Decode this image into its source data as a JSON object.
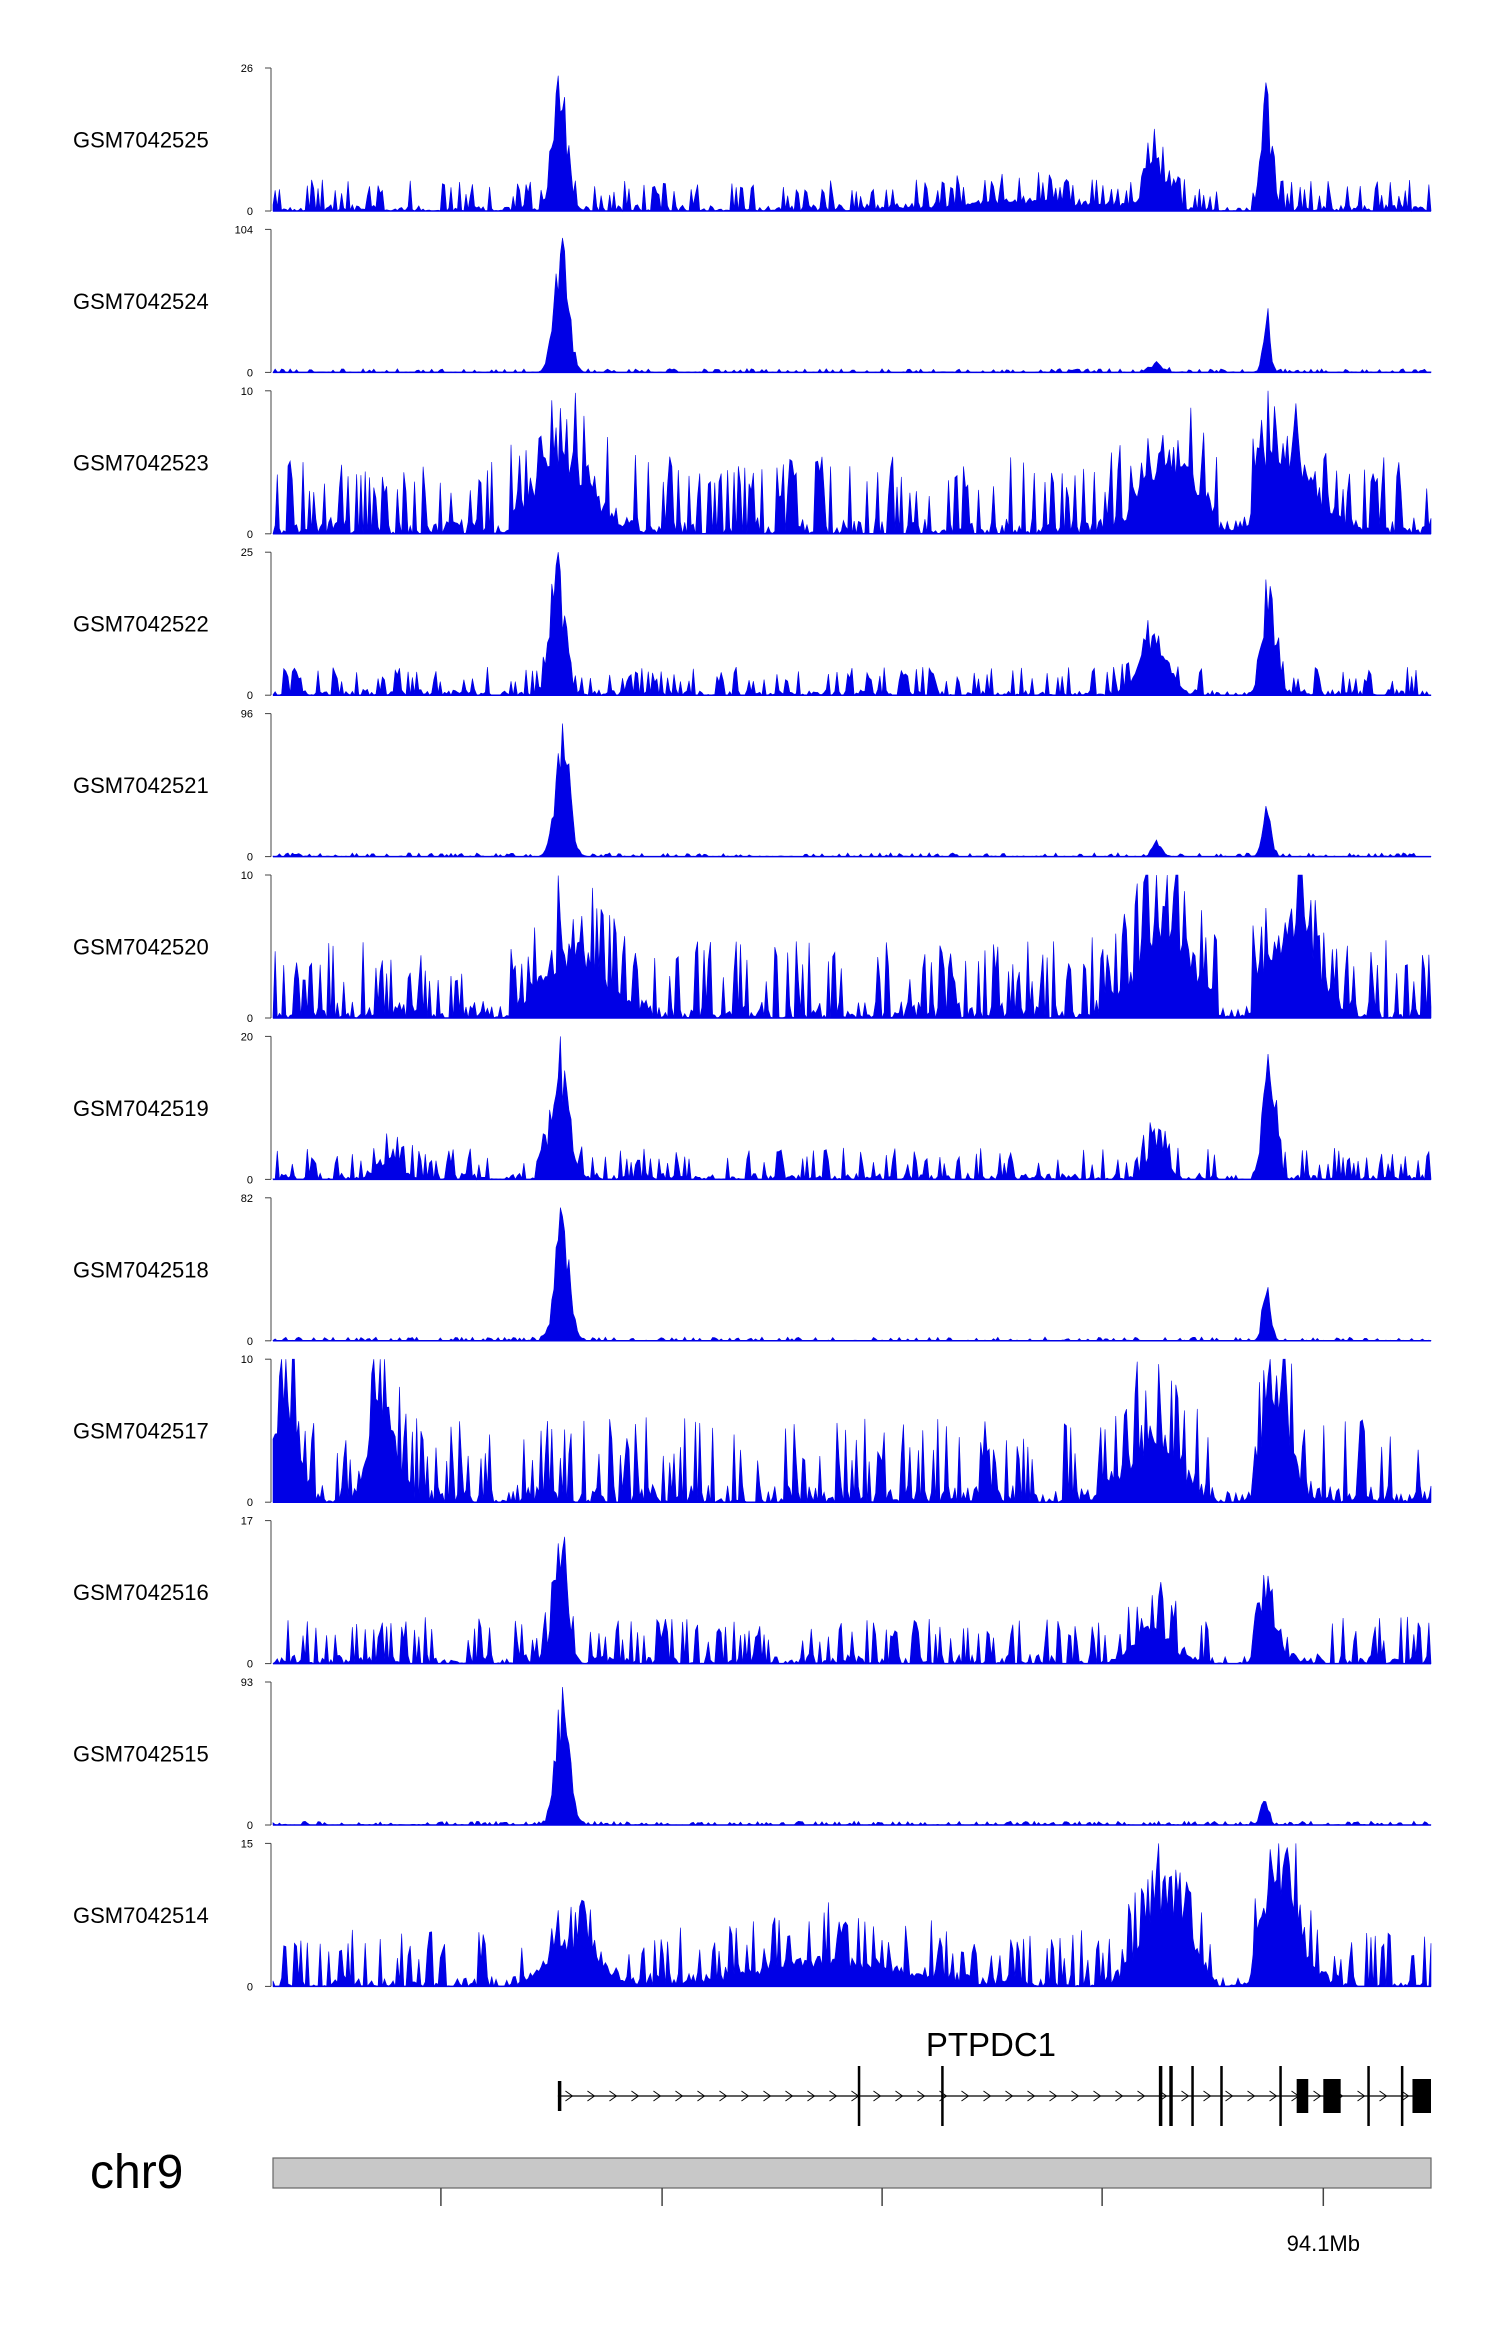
{
  "chart_data": {
    "type": "area",
    "track_color": "#0000e6",
    "x_range": [
      0,
      100
    ],
    "series": [
      {
        "name": "GSM7042525",
        "ymax": "26",
        "ymin": "0",
        "peak_max": 26,
        "noise": 0.1,
        "peaks": [
          [
            24.8,
            0.6,
            1.0
          ],
          [
            76.3,
            0.9,
            0.4
          ],
          [
            85.8,
            0.45,
            0.85
          ],
          [
            65.0,
            6.0,
            0.08
          ]
        ]
      },
      {
        "name": "GSM7042524",
        "ymax": "104",
        "ymin": "0",
        "peak_max": 104,
        "noise": 0.012,
        "peaks": [
          [
            24.9,
            0.6,
            1.0
          ],
          [
            76.3,
            0.6,
            0.06
          ],
          [
            85.8,
            0.3,
            0.5
          ]
        ]
      },
      {
        "name": "GSM7042523",
        "ymax": "10",
        "ymin": "0",
        "peak_max": 10,
        "noise": 0.25,
        "peaks": [
          [
            25.0,
            2.5,
            0.65
          ],
          [
            77.5,
            2.2,
            0.7
          ],
          [
            87.0,
            2.5,
            0.8
          ]
        ]
      },
      {
        "name": "GSM7042522",
        "ymax": "25",
        "ymin": "0",
        "peak_max": 25,
        "noise": 0.09,
        "peaks": [
          [
            24.6,
            0.6,
            1.0
          ],
          [
            76.0,
            1.2,
            0.45
          ],
          [
            86.0,
            0.6,
            0.7
          ]
        ]
      },
      {
        "name": "GSM7042521",
        "ymax": "96",
        "ymin": "0",
        "peak_max": 96,
        "noise": 0.012,
        "peaks": [
          [
            25.0,
            0.6,
            1.0
          ],
          [
            76.4,
            0.4,
            0.12
          ],
          [
            85.8,
            0.35,
            0.5
          ]
        ]
      },
      {
        "name": "GSM7042520",
        "ymax": "10",
        "ymin": "0",
        "peak_max": 10,
        "noise": 0.25,
        "peaks": [
          [
            26.0,
            2.5,
            0.55
          ],
          [
            77.0,
            2.4,
            0.8
          ],
          [
            88.0,
            2.0,
            0.85
          ]
        ]
      },
      {
        "name": "GSM7042519",
        "ymax": "20",
        "ymin": "0",
        "peak_max": 20,
        "noise": 0.1,
        "peaks": [
          [
            24.8,
            0.7,
            0.95
          ],
          [
            76.3,
            0.8,
            0.35
          ],
          [
            86.0,
            0.5,
            1.0
          ],
          [
            10.0,
            1.0,
            0.18
          ]
        ]
      },
      {
        "name": "GSM7042518",
        "ymax": "82",
        "ymin": "0",
        "peak_max": 82,
        "noise": 0.012,
        "peaks": [
          [
            25.0,
            0.6,
            1.0
          ],
          [
            85.8,
            0.35,
            0.45
          ]
        ]
      },
      {
        "name": "GSM7042517",
        "ymax": "10",
        "ymin": "0",
        "peak_max": 10,
        "noise": 0.27,
        "peaks": [
          [
            9.5,
            1.0,
            0.95
          ],
          [
            1.0,
            1.0,
            0.8
          ],
          [
            86.5,
            1.2,
            1.0
          ],
          [
            76.0,
            2.0,
            0.55
          ]
        ]
      },
      {
        "name": "GSM7042516",
        "ymax": "17",
        "ymin": "0",
        "peak_max": 17,
        "noise": 0.15,
        "peaks": [
          [
            24.8,
            0.6,
            1.0
          ],
          [
            85.8,
            0.8,
            0.65
          ],
          [
            76.0,
            1.5,
            0.3
          ]
        ]
      },
      {
        "name": "GSM7042515",
        "ymax": "93",
        "ymin": "0",
        "peak_max": 93,
        "noise": 0.012,
        "peaks": [
          [
            25.0,
            0.6,
            1.0
          ],
          [
            85.6,
            0.3,
            0.28
          ]
        ]
      },
      {
        "name": "GSM7042514",
        "ymax": "15",
        "ymin": "0",
        "peak_max": 15,
        "noise": 0.18,
        "peaks": [
          [
            77.0,
            1.8,
            0.9
          ],
          [
            87.0,
            1.6,
            0.95
          ],
          [
            26.0,
            2.0,
            0.4
          ],
          [
            48.0,
            6.0,
            0.2
          ]
        ]
      }
    ],
    "gene": {
      "name": "PTPDC1",
      "start": 24.6,
      "end": 100,
      "strand": "+",
      "exons": [
        [
          24.6,
          24.9,
          "thin"
        ],
        [
          50.5,
          50.7,
          "thin"
        ],
        [
          57.7,
          57.9,
          "thin"
        ],
        [
          76.5,
          76.8,
          "thin"
        ],
        [
          77.4,
          77.7,
          "thin"
        ],
        [
          79.3,
          79.5,
          "thin"
        ],
        [
          81.8,
          82.0,
          "thin"
        ],
        [
          86.9,
          87.1,
          "thin"
        ],
        [
          88.4,
          89.4,
          "thick"
        ],
        [
          90.7,
          92.2,
          "thick"
        ],
        [
          94.5,
          94.7,
          "thin"
        ],
        [
          97.4,
          97.6,
          "thin"
        ],
        [
          98.4,
          100,
          "thick"
        ]
      ]
    },
    "chromosome": {
      "name": "chr9",
      "ticks": [
        14.5,
        33.6,
        52.6,
        71.6,
        90.7
      ],
      "tick_labels": [
        "",
        "",
        "",
        "",
        "94.1Mb"
      ]
    }
  }
}
